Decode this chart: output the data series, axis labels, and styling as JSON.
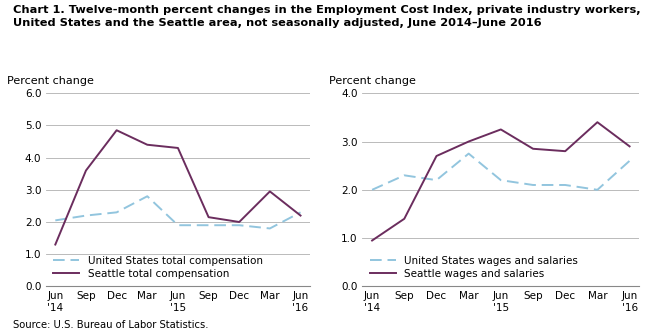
{
  "title_line1": "Chart 1. Twelve-month percent changes in the Employment Cost Index, private industry workers,",
  "title_line2": "United States and the Seattle area, not seasonally adjusted, June 2014–June 2016",
  "source": "Source: U.S. Bureau of Labor Statistics.",
  "x_labels": [
    "Jun\n'14",
    "Sep",
    "Dec",
    "Mar",
    "Jun\n'15",
    "Sep",
    "Dec",
    "Mar",
    "Jun\n'16"
  ],
  "left_ylabel": "Percent change",
  "right_ylabel": "Percent change",
  "left_ylim": [
    0.0,
    6.0
  ],
  "right_ylim": [
    0.0,
    4.0
  ],
  "left_yticks": [
    0.0,
    1.0,
    2.0,
    3.0,
    4.0,
    5.0,
    6.0
  ],
  "right_yticks": [
    0.0,
    1.0,
    2.0,
    3.0,
    4.0
  ],
  "us_total_comp": [
    2.05,
    2.2,
    2.3,
    2.8,
    1.9,
    1.9,
    1.9,
    1.8,
    2.3
  ],
  "seattle_total_comp": [
    1.3,
    3.6,
    4.85,
    4.4,
    4.3,
    2.15,
    2.0,
    2.95,
    2.2
  ],
  "us_wages_salaries": [
    2.0,
    2.3,
    2.2,
    2.75,
    2.2,
    2.1,
    2.1,
    2.0,
    2.6
  ],
  "seattle_wages_salaries": [
    0.95,
    1.4,
    2.7,
    3.0,
    3.25,
    2.85,
    2.8,
    3.4,
    2.9
  ],
  "us_color": "#92C5DE",
  "seattle_color": "#6B2D5E",
  "background_color": "#ffffff",
  "grid_color": "#b0b0b0",
  "title_fontsize": 8.2,
  "ylabel_fontsize": 8.0,
  "tick_fontsize": 7.5,
  "legend_fontsize": 7.5
}
